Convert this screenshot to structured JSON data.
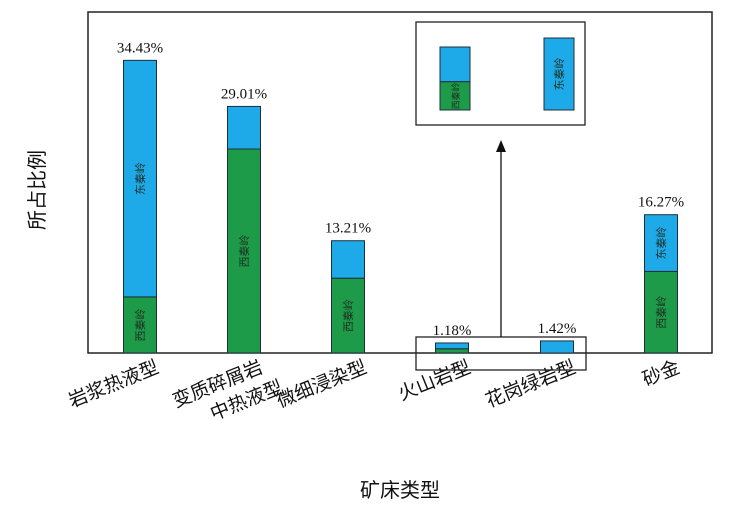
{
  "chart_data": {
    "type": "bar",
    "stacked": true,
    "xlabel": "矿床类型",
    "ylabel": "所占比例",
    "categories": [
      [
        "岩浆热液型"
      ],
      [
        "变质碎屑岩",
        "中热液型"
      ],
      [
        "微细浸染型"
      ],
      [
        "火山岩型"
      ],
      [
        "花岗绿岩型"
      ],
      [
        "砂金"
      ]
    ],
    "totals": [
      34.43,
      29.01,
      13.21,
      1.18,
      1.42,
      16.27
    ],
    "total_labels": [
      "34.43%",
      "29.01%",
      "13.21%",
      "1.18%",
      "1.42%",
      "16.27%"
    ],
    "series": [
      {
        "name": "西秦岭",
        "color": "#1e9b48",
        "values": [
          6.6,
          24.0,
          8.8,
          0.5,
          0.0,
          9.6
        ],
        "labels": [
          "西秦岭",
          "西秦岭",
          "西秦岭",
          "",
          "",
          "西秦岭"
        ]
      },
      {
        "name": "东秦岭",
        "color": "#1ea9e8",
        "values": [
          27.83,
          5.01,
          4.41,
          0.68,
          1.42,
          6.67
        ],
        "labels": [
          "东秦岭",
          "",
          "",
          "",
          "",
          "东秦岭"
        ]
      }
    ],
    "ylim": [
      0,
      40
    ],
    "inset": {
      "bars": [
        {
          "labels": [
            "西秦岭",
            ""
          ],
          "fractions": [
            0.45,
            0.55
          ]
        },
        {
          "labels": [
            "",
            "东秦岭"
          ],
          "fractions": [
            0.0,
            1.0
          ]
        }
      ]
    }
  }
}
